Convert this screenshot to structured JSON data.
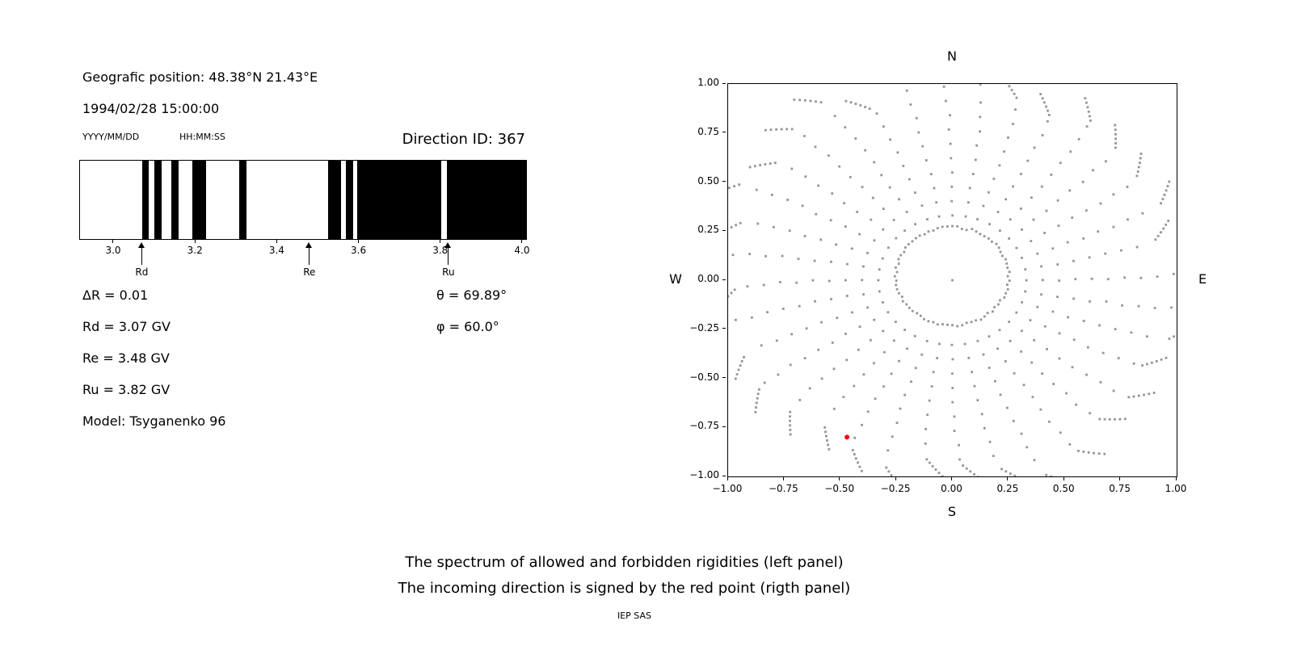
{
  "window": {
    "background": "#ffffff"
  },
  "left_panel": {
    "geographic_position": "Geografic position: 48.38°N 21.43°E",
    "datetime": "1994/02/28 15:00:00",
    "date_format_label": "YYYY/MM/DD",
    "time_format_label": "HH:MM:SS",
    "direction_id_label": "Direction ID: 367",
    "params": {
      "delta_r": "ΔR = 0.01",
      "rd": "Rd = 3.07 GV",
      "re": "Re = 3.48 GV",
      "ru": "Ru = 3.82 GV",
      "model": "Model: Tsyganenko 96",
      "theta": "θ = 69.89°",
      "phi": "φ = 60.0°"
    }
  },
  "caption": {
    "line1": "The spectrum of allowed and forbidden rigidities (left panel)",
    "line2": "The incoming direction is signed by the red point (rigth panel)",
    "credit": "IEP SAS"
  },
  "chart_data": [
    {
      "name": "rigidity-spectrum",
      "type": "bar",
      "style": "barcode penumbra plot: black bands = forbidden rigidities, white gaps = allowed",
      "xlim": [
        2.917,
        4.008
      ],
      "xticks": [
        3.0,
        3.2,
        3.4,
        3.6,
        3.8,
        4.0
      ],
      "band_color": "#000000",
      "background": "#ffffff",
      "forbidden_bands_gv": [
        [
          3.069,
          3.086
        ],
        [
          3.099,
          3.116
        ],
        [
          3.14,
          3.158
        ],
        [
          3.192,
          3.226
        ],
        [
          3.306,
          3.324
        ],
        [
          3.524,
          3.556
        ],
        [
          3.567,
          3.586
        ],
        [
          3.594,
          3.8
        ],
        [
          3.814,
          4.008
        ]
      ],
      "markers": [
        {
          "label": "Rd",
          "value_gv": 3.07
        },
        {
          "label": "Re",
          "value_gv": 3.48
        },
        {
          "label": "Ru",
          "value_gv": 3.82
        }
      ],
      "delta_r_gv": 0.01
    },
    {
      "name": "incoming-direction-map",
      "type": "scatter",
      "xlim": [
        -1.0,
        1.0
      ],
      "ylim": [
        -1.0,
        1.0
      ],
      "xticks": [
        -1.0,
        -0.75,
        -0.5,
        -0.25,
        0.0,
        0.25,
        0.5,
        0.75,
        1.0
      ],
      "yticks": [
        -1.0,
        -0.75,
        -0.5,
        -0.25,
        0.0,
        0.25,
        0.5,
        0.75,
        1.0
      ],
      "grid": false,
      "compass": {
        "top": "N",
        "bottom": "S",
        "left": "W",
        "right": "E"
      },
      "dot_color": "#8a8a8a",
      "dot_opacity": 0.9,
      "red_point": {
        "x": -0.47,
        "y": -0.8,
        "color": "#ff0000"
      },
      "pattern": {
        "description": "36 radial spokes of small gray dots every 10 degrees, from r≈0.33 out to r≈1.0–1.16; dots bunch into short curved tails at the outer ends; ring of dots at r≈0.25 around the center and a single dot at the origin",
        "n_spokes": 36,
        "spoke_r_start": 0.33,
        "main_step": 0.073,
        "tip_r_min": 1.0,
        "tip_r_max": 1.16,
        "tip_dots": 6,
        "tip_step": 0.016,
        "curve_rad": 0.05,
        "tip_curve_rad": 0.08,
        "ring": {
          "r": 0.25,
          "cy": 0.02,
          "count": 72
        },
        "center_dot": true
      }
    }
  ]
}
